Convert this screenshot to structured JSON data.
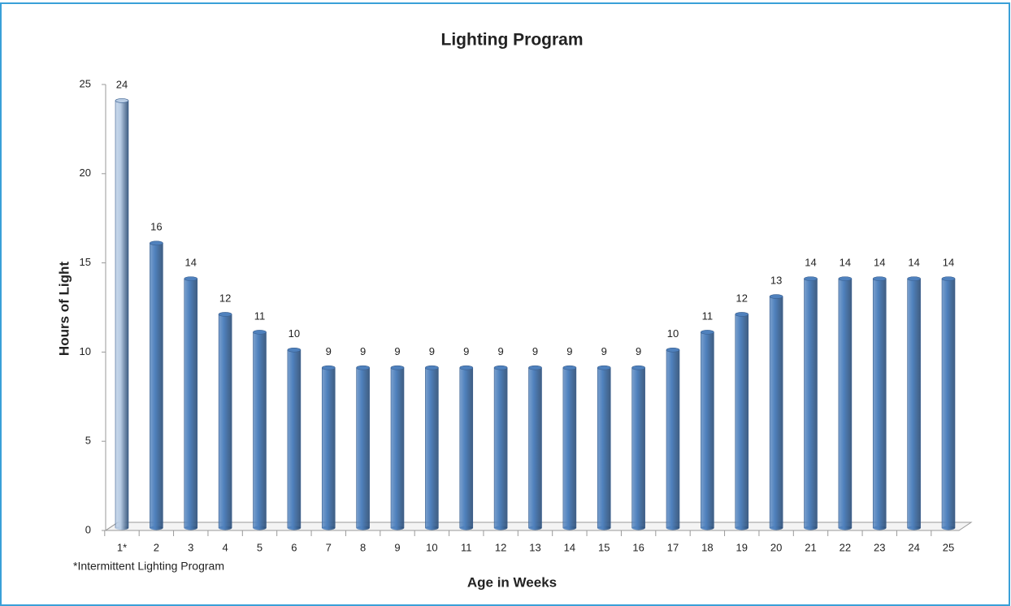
{
  "chart_data": {
    "type": "bar",
    "title": "Lighting Program",
    "x_label": "Age  in Weeks",
    "y_label": "Hours of Light",
    "annotation": "*Intermittent Lighting Program",
    "categories": [
      "1*",
      "2",
      "3",
      "4",
      "5",
      "6",
      "7",
      "8",
      "9",
      "10",
      "11",
      "12",
      "13",
      "14",
      "15",
      "16",
      "17",
      "18",
      "19",
      "20",
      "21",
      "22",
      "23",
      "24",
      "25"
    ],
    "values": [
      24,
      16,
      14,
      12,
      11,
      10,
      9,
      9,
      9,
      9,
      9,
      9,
      9,
      9,
      9,
      9,
      10,
      11,
      12,
      13,
      14,
      14,
      14,
      14,
      14
    ],
    "colors": [
      "#b8cce4",
      "#4f81bd",
      "#4f81bd",
      "#4f81bd",
      "#4f81bd",
      "#4f81bd",
      "#4f81bd",
      "#4f81bd",
      "#4f81bd",
      "#4f81bd",
      "#4f81bd",
      "#4f81bd",
      "#4f81bd",
      "#4f81bd",
      "#4f81bd",
      "#4f81bd",
      "#4f81bd",
      "#4f81bd",
      "#4f81bd",
      "#4f81bd",
      "#4f81bd",
      "#4f81bd",
      "#4f81bd",
      "#4f81bd",
      "#4f81bd"
    ],
    "ylim": [
      0,
      25
    ],
    "yticks": [
      0,
      5,
      10,
      15,
      20,
      25
    ],
    "grid": false
  }
}
